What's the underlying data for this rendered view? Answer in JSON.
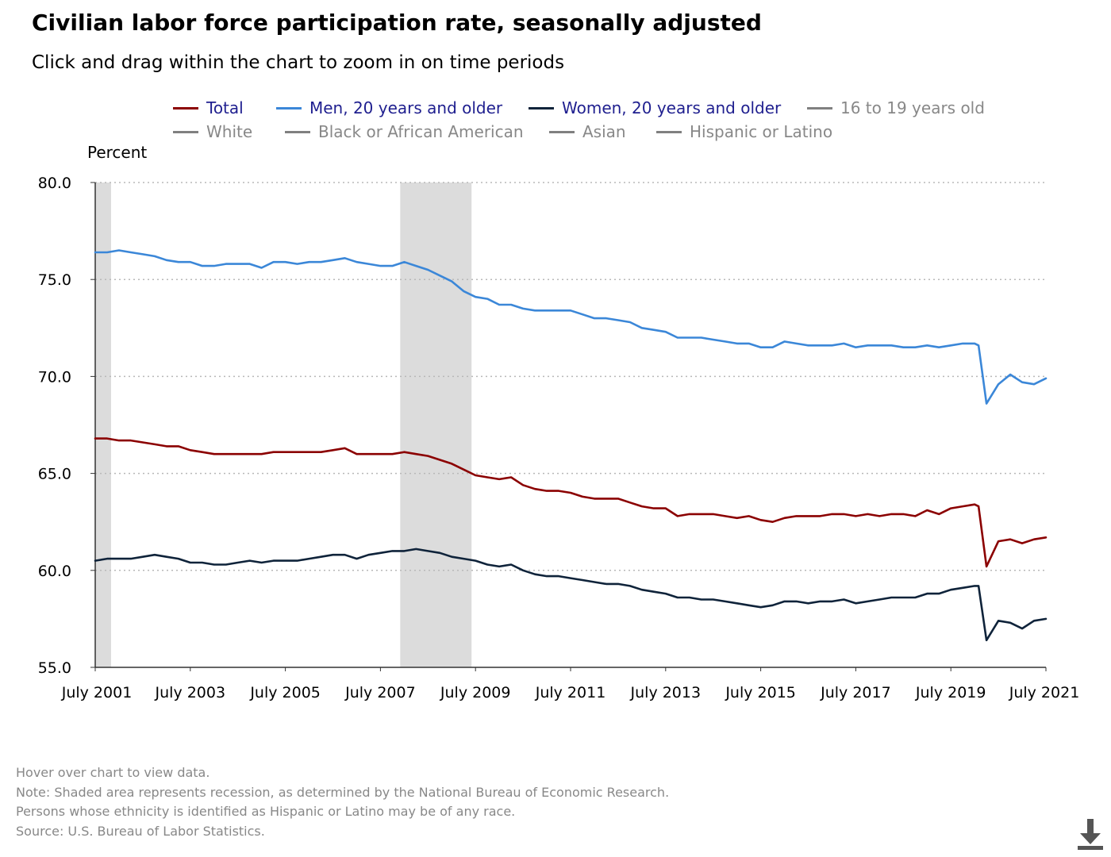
{
  "header": {
    "title": "Civilian labor force participation rate, seasonally adjusted",
    "subtitle": "Click and drag within the chart to zoom in on time periods"
  },
  "legend": {
    "items": [
      {
        "label": "Total",
        "color": "#8b0000",
        "active": true
      },
      {
        "label": "Men, 20 years and older",
        "color": "#3b87d8",
        "active": true
      },
      {
        "label": "Women, 20 years and older",
        "color": "#0f233a",
        "active": true
      },
      {
        "label": "16 to 19 years old",
        "color": "#808080",
        "active": false
      },
      {
        "label": "White",
        "color": "#808080",
        "active": false
      },
      {
        "label": "Black or African American",
        "color": "#808080",
        "active": false
      },
      {
        "label": "Asian",
        "color": "#808080",
        "active": false
      },
      {
        "label": "Hispanic or Latino",
        "color": "#808080",
        "active": false
      }
    ],
    "active_text_color": "#1f1f8f",
    "inactive_text_color": "#888888"
  },
  "chart_data": {
    "type": "line",
    "ylabel": "Percent",
    "ylim": [
      55.0,
      80.0
    ],
    "yticks": [
      "55.0",
      "60.0",
      "65.0",
      "70.0",
      "75.0",
      "80.0"
    ],
    "xlim": [
      "2001-07",
      "2021-07"
    ],
    "xticks": [
      "July 2001",
      "July 2003",
      "July 2005",
      "July 2007",
      "July 2009",
      "July 2011",
      "July 2013",
      "July 2015",
      "July 2017",
      "July 2019",
      "July 2021"
    ],
    "grid": "horizontal dotted",
    "recessions": [
      [
        "2001-07",
        "2001-11"
      ],
      [
        "2007-12",
        "2009-06"
      ]
    ],
    "recession_color": "#dcdcdc",
    "x": [
      "2001-07",
      "2001-10",
      "2002-01",
      "2002-04",
      "2002-07",
      "2002-10",
      "2003-01",
      "2003-04",
      "2003-07",
      "2003-10",
      "2004-01",
      "2004-04",
      "2004-07",
      "2004-10",
      "2005-01",
      "2005-04",
      "2005-07",
      "2005-10",
      "2006-01",
      "2006-04",
      "2006-07",
      "2006-10",
      "2007-01",
      "2007-04",
      "2007-07",
      "2007-10",
      "2008-01",
      "2008-04",
      "2008-07",
      "2008-10",
      "2009-01",
      "2009-04",
      "2009-07",
      "2009-10",
      "2010-01",
      "2010-04",
      "2010-07",
      "2010-10",
      "2011-01",
      "2011-04",
      "2011-07",
      "2011-10",
      "2012-01",
      "2012-04",
      "2012-07",
      "2012-10",
      "2013-01",
      "2013-04",
      "2013-07",
      "2013-10",
      "2014-01",
      "2014-04",
      "2014-07",
      "2014-10",
      "2015-01",
      "2015-04",
      "2015-07",
      "2015-10",
      "2016-01",
      "2016-04",
      "2016-07",
      "2016-10",
      "2017-01",
      "2017-04",
      "2017-07",
      "2017-10",
      "2018-01",
      "2018-04",
      "2018-07",
      "2018-10",
      "2019-01",
      "2019-04",
      "2019-07",
      "2019-10",
      "2020-01",
      "2020-02",
      "2020-04",
      "2020-07",
      "2020-10",
      "2021-01",
      "2021-04",
      "2021-07"
    ],
    "series": [
      {
        "name": "Total",
        "color": "#8b0000",
        "values": [
          66.8,
          66.8,
          66.7,
          66.7,
          66.6,
          66.5,
          66.4,
          66.4,
          66.2,
          66.1,
          66.0,
          66.0,
          66.0,
          66.0,
          66.0,
          66.1,
          66.1,
          66.1,
          66.1,
          66.1,
          66.2,
          66.3,
          66.0,
          66.0,
          66.0,
          66.0,
          66.1,
          66.0,
          65.9,
          65.7,
          65.5,
          65.2,
          64.9,
          64.8,
          64.7,
          64.8,
          64.4,
          64.2,
          64.1,
          64.1,
          64.0,
          63.8,
          63.7,
          63.7,
          63.7,
          63.5,
          63.3,
          63.2,
          63.2,
          62.8,
          62.9,
          62.9,
          62.9,
          62.8,
          62.7,
          62.8,
          62.6,
          62.5,
          62.7,
          62.8,
          62.8,
          62.8,
          62.9,
          62.9,
          62.8,
          62.9,
          62.8,
          62.9,
          62.9,
          62.8,
          63.1,
          62.9,
          63.2,
          63.3,
          63.4,
          63.3,
          60.2,
          61.5,
          61.6,
          61.4,
          61.6,
          61.7
        ]
      },
      {
        "name": "Men, 20 years and older",
        "color": "#3b87d8",
        "values": [
          76.4,
          76.4,
          76.5,
          76.4,
          76.3,
          76.2,
          76.0,
          75.9,
          75.9,
          75.7,
          75.7,
          75.8,
          75.8,
          75.8,
          75.6,
          75.9,
          75.9,
          75.8,
          75.9,
          75.9,
          76.0,
          76.1,
          75.9,
          75.8,
          75.7,
          75.7,
          75.9,
          75.7,
          75.5,
          75.2,
          74.9,
          74.4,
          74.1,
          74.0,
          73.7,
          73.7,
          73.5,
          73.4,
          73.4,
          73.4,
          73.4,
          73.2,
          73.0,
          73.0,
          72.9,
          72.8,
          72.5,
          72.4,
          72.3,
          72.0,
          72.0,
          72.0,
          71.9,
          71.8,
          71.7,
          71.7,
          71.5,
          71.5,
          71.8,
          71.7,
          71.6,
          71.6,
          71.6,
          71.7,
          71.5,
          71.6,
          71.6,
          71.6,
          71.5,
          71.5,
          71.6,
          71.5,
          71.6,
          71.7,
          71.7,
          71.6,
          68.6,
          69.6,
          70.1,
          69.7,
          69.6,
          69.9
        ]
      },
      {
        "name": "Women, 20 years and older",
        "color": "#0f233a",
        "values": [
          60.5,
          60.6,
          60.6,
          60.6,
          60.7,
          60.8,
          60.7,
          60.6,
          60.4,
          60.4,
          60.3,
          60.3,
          60.4,
          60.5,
          60.4,
          60.5,
          60.5,
          60.5,
          60.6,
          60.7,
          60.8,
          60.8,
          60.6,
          60.8,
          60.9,
          61.0,
          61.0,
          61.1,
          61.0,
          60.9,
          60.7,
          60.6,
          60.5,
          60.3,
          60.2,
          60.3,
          60.0,
          59.8,
          59.7,
          59.7,
          59.6,
          59.5,
          59.4,
          59.3,
          59.3,
          59.2,
          59.0,
          58.9,
          58.8,
          58.6,
          58.6,
          58.5,
          58.5,
          58.4,
          58.3,
          58.2,
          58.1,
          58.2,
          58.4,
          58.4,
          58.3,
          58.4,
          58.4,
          58.5,
          58.3,
          58.4,
          58.5,
          58.6,
          58.6,
          58.6,
          58.8,
          58.8,
          59.0,
          59.1,
          59.2,
          59.2,
          56.4,
          57.4,
          57.3,
          57.0,
          57.4,
          57.5
        ]
      }
    ]
  },
  "footnotes": {
    "hover": "Hover over chart to view data.",
    "note": "Note: Shaded area represents recession, as determined by the National Bureau of Economic Research.",
    "ethnicity": "Persons whose ethnicity is identified as Hispanic or Latino may be of any race.",
    "source": "Source: U.S. Bureau of Labor Statistics."
  },
  "icons": {
    "download": "download-icon"
  }
}
